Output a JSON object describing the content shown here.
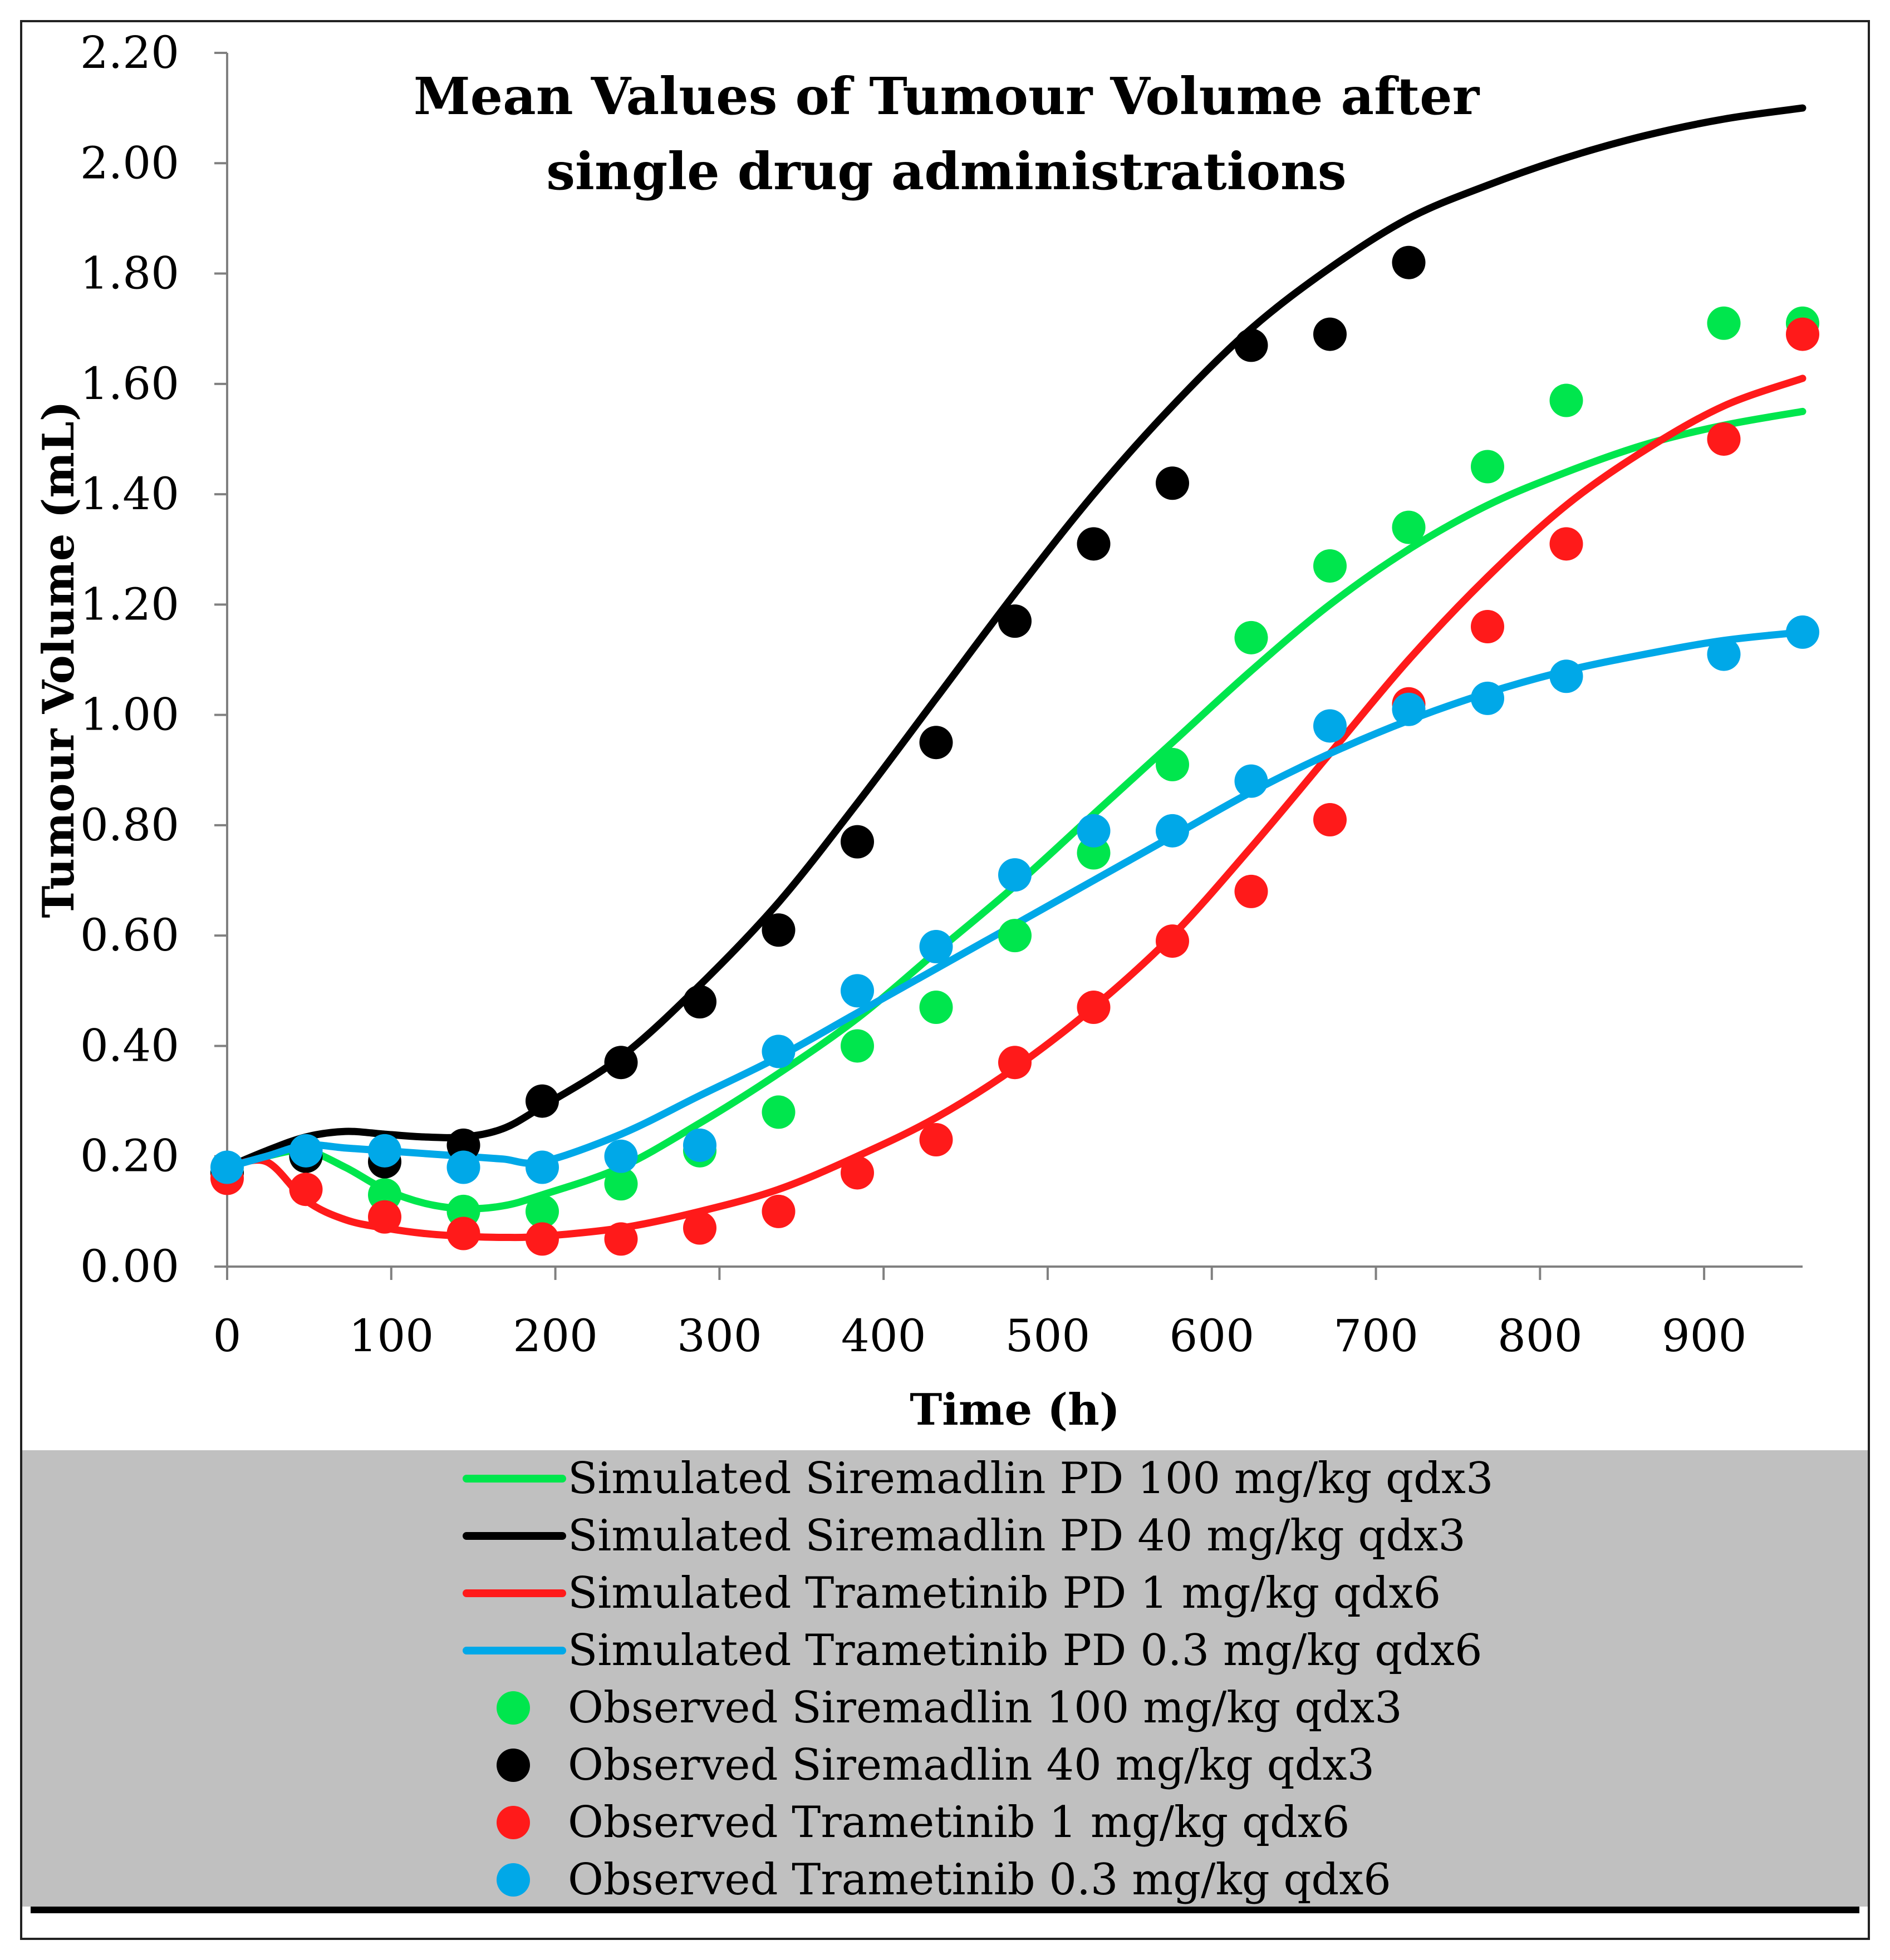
{
  "chart_data": {
    "type": "line",
    "title_lines": [
      "Mean Values of Tumour Volume after",
      "single drug administrations"
    ],
    "xlabel": "Time (h)",
    "ylabel": "Tumour Volume (mL)",
    "xlim": [
      0,
      960
    ],
    "ylim": [
      0,
      2.2
    ],
    "x_ticks": [
      "0",
      "100",
      "200",
      "300",
      "400",
      "500",
      "600",
      "700",
      "800",
      "900"
    ],
    "y_ticks": [
      "0.00",
      "0.20",
      "0.40",
      "0.60",
      "0.80",
      "1.00",
      "1.20",
      "1.40",
      "1.60",
      "1.80",
      "2.00",
      "2.20"
    ],
    "grid": false,
    "legend_position": "bottom",
    "simulated": [
      {
        "name": "Simulated Siremadlin PD 100 mg/kg qdx3",
        "color": "#00e64d",
        "x": [
          0,
          24,
          48,
          72,
          96,
          120,
          144,
          168,
          192,
          240,
          288,
          336,
          384,
          432,
          480,
          528,
          576,
          624,
          672,
          720,
          768,
          816,
          864,
          912,
          960
        ],
        "y": [
          0.18,
          0.2,
          0.21,
          0.18,
          0.14,
          0.115,
          0.105,
          0.11,
          0.13,
          0.18,
          0.26,
          0.35,
          0.45,
          0.57,
          0.69,
          0.82,
          0.95,
          1.08,
          1.2,
          1.3,
          1.38,
          1.44,
          1.49,
          1.525,
          1.55
        ]
      },
      {
        "name": "Simulated Siremadlin PD 40 mg/kg qdx3",
        "color": "#000000",
        "x": [
          0,
          24,
          48,
          72,
          96,
          120,
          144,
          168,
          192,
          240,
          288,
          336,
          384,
          432,
          480,
          528,
          576,
          624,
          672,
          720,
          768,
          816,
          864,
          912,
          960
        ],
        "y": [
          0.18,
          0.21,
          0.235,
          0.245,
          0.24,
          0.235,
          0.235,
          0.25,
          0.29,
          0.38,
          0.51,
          0.66,
          0.84,
          1.03,
          1.22,
          1.4,
          1.56,
          1.7,
          1.81,
          1.9,
          1.96,
          2.01,
          2.05,
          2.08,
          2.1
        ]
      },
      {
        "name": "Simulated Trametinib PD 1 mg/kg qdx6",
        "color": "#ff1a1a",
        "x": [
          0,
          24,
          48,
          72,
          96,
          120,
          144,
          168,
          192,
          240,
          288,
          336,
          384,
          432,
          480,
          528,
          576,
          624,
          672,
          720,
          768,
          816,
          864,
          912,
          960
        ],
        "y": [
          0.18,
          0.19,
          0.12,
          0.085,
          0.07,
          0.06,
          0.055,
          0.053,
          0.055,
          0.07,
          0.1,
          0.14,
          0.2,
          0.27,
          0.36,
          0.47,
          0.6,
          0.76,
          0.93,
          1.1,
          1.25,
          1.38,
          1.48,
          1.56,
          1.61
        ]
      },
      {
        "name": "Simulated Trametinib PD 0.3 mg/kg qdx6",
        "color": "#00a8e8",
        "x": [
          0,
          24,
          48,
          72,
          96,
          120,
          144,
          168,
          192,
          240,
          288,
          336,
          384,
          432,
          480,
          528,
          576,
          624,
          672,
          720,
          768,
          816,
          864,
          912,
          960
        ],
        "y": [
          0.18,
          0.2,
          0.22,
          0.215,
          0.21,
          0.205,
          0.2,
          0.195,
          0.19,
          0.24,
          0.31,
          0.38,
          0.46,
          0.54,
          0.62,
          0.7,
          0.78,
          0.86,
          0.93,
          0.99,
          1.04,
          1.08,
          1.11,
          1.135,
          1.15
        ]
      }
    ],
    "observed": [
      {
        "name": "Observed Siremadlin 100 mg/kg qdx3",
        "color": "#00e64d",
        "x": [
          0,
          48,
          96,
          144,
          192,
          240,
          288,
          336,
          384,
          432,
          480,
          528,
          576,
          624,
          672,
          720,
          768,
          816,
          912,
          960
        ],
        "y": [
          0.17,
          0.2,
          0.13,
          0.1,
          0.1,
          0.15,
          0.21,
          0.28,
          0.4,
          0.47,
          0.6,
          0.75,
          0.91,
          1.14,
          1.27,
          1.34,
          1.45,
          1.57,
          1.71,
          1.71
        ]
      },
      {
        "name": "Observed Siremadlin 40 mg/kg qdx3",
        "color": "#000000",
        "x": [
          0,
          48,
          96,
          144,
          192,
          240,
          288,
          336,
          384,
          432,
          480,
          528,
          576,
          624,
          672,
          720
        ],
        "y": [
          0.17,
          0.2,
          0.19,
          0.22,
          0.3,
          0.37,
          0.48,
          0.61,
          0.77,
          0.95,
          1.17,
          1.31,
          1.42,
          1.67,
          1.69,
          1.82
        ]
      },
      {
        "name": "Observed Trametinib 1 mg/kg qdx6",
        "color": "#ff1a1a",
        "x": [
          0,
          48,
          96,
          144,
          192,
          240,
          288,
          336,
          384,
          432,
          480,
          528,
          576,
          624,
          672,
          720,
          768,
          816,
          912,
          960
        ],
        "y": [
          0.16,
          0.14,
          0.09,
          0.06,
          0.05,
          0.05,
          0.07,
          0.1,
          0.17,
          0.23,
          0.37,
          0.47,
          0.59,
          0.68,
          0.81,
          1.02,
          1.16,
          1.31,
          1.5,
          1.69
        ]
      },
      {
        "name": "Observed Trametinib 0.3 mg/kg qdx6",
        "color": "#00a8e8",
        "x": [
          0,
          48,
          96,
          144,
          192,
          240,
          288,
          336,
          384,
          432,
          480,
          528,
          576,
          624,
          672,
          720,
          768,
          816,
          912,
          960
        ],
        "y": [
          0.18,
          0.21,
          0.21,
          0.18,
          0.18,
          0.2,
          0.22,
          0.39,
          0.5,
          0.58,
          0.71,
          0.79,
          0.79,
          0.88,
          0.98,
          1.01,
          1.03,
          1.07,
          1.11,
          1.15
        ]
      }
    ]
  }
}
